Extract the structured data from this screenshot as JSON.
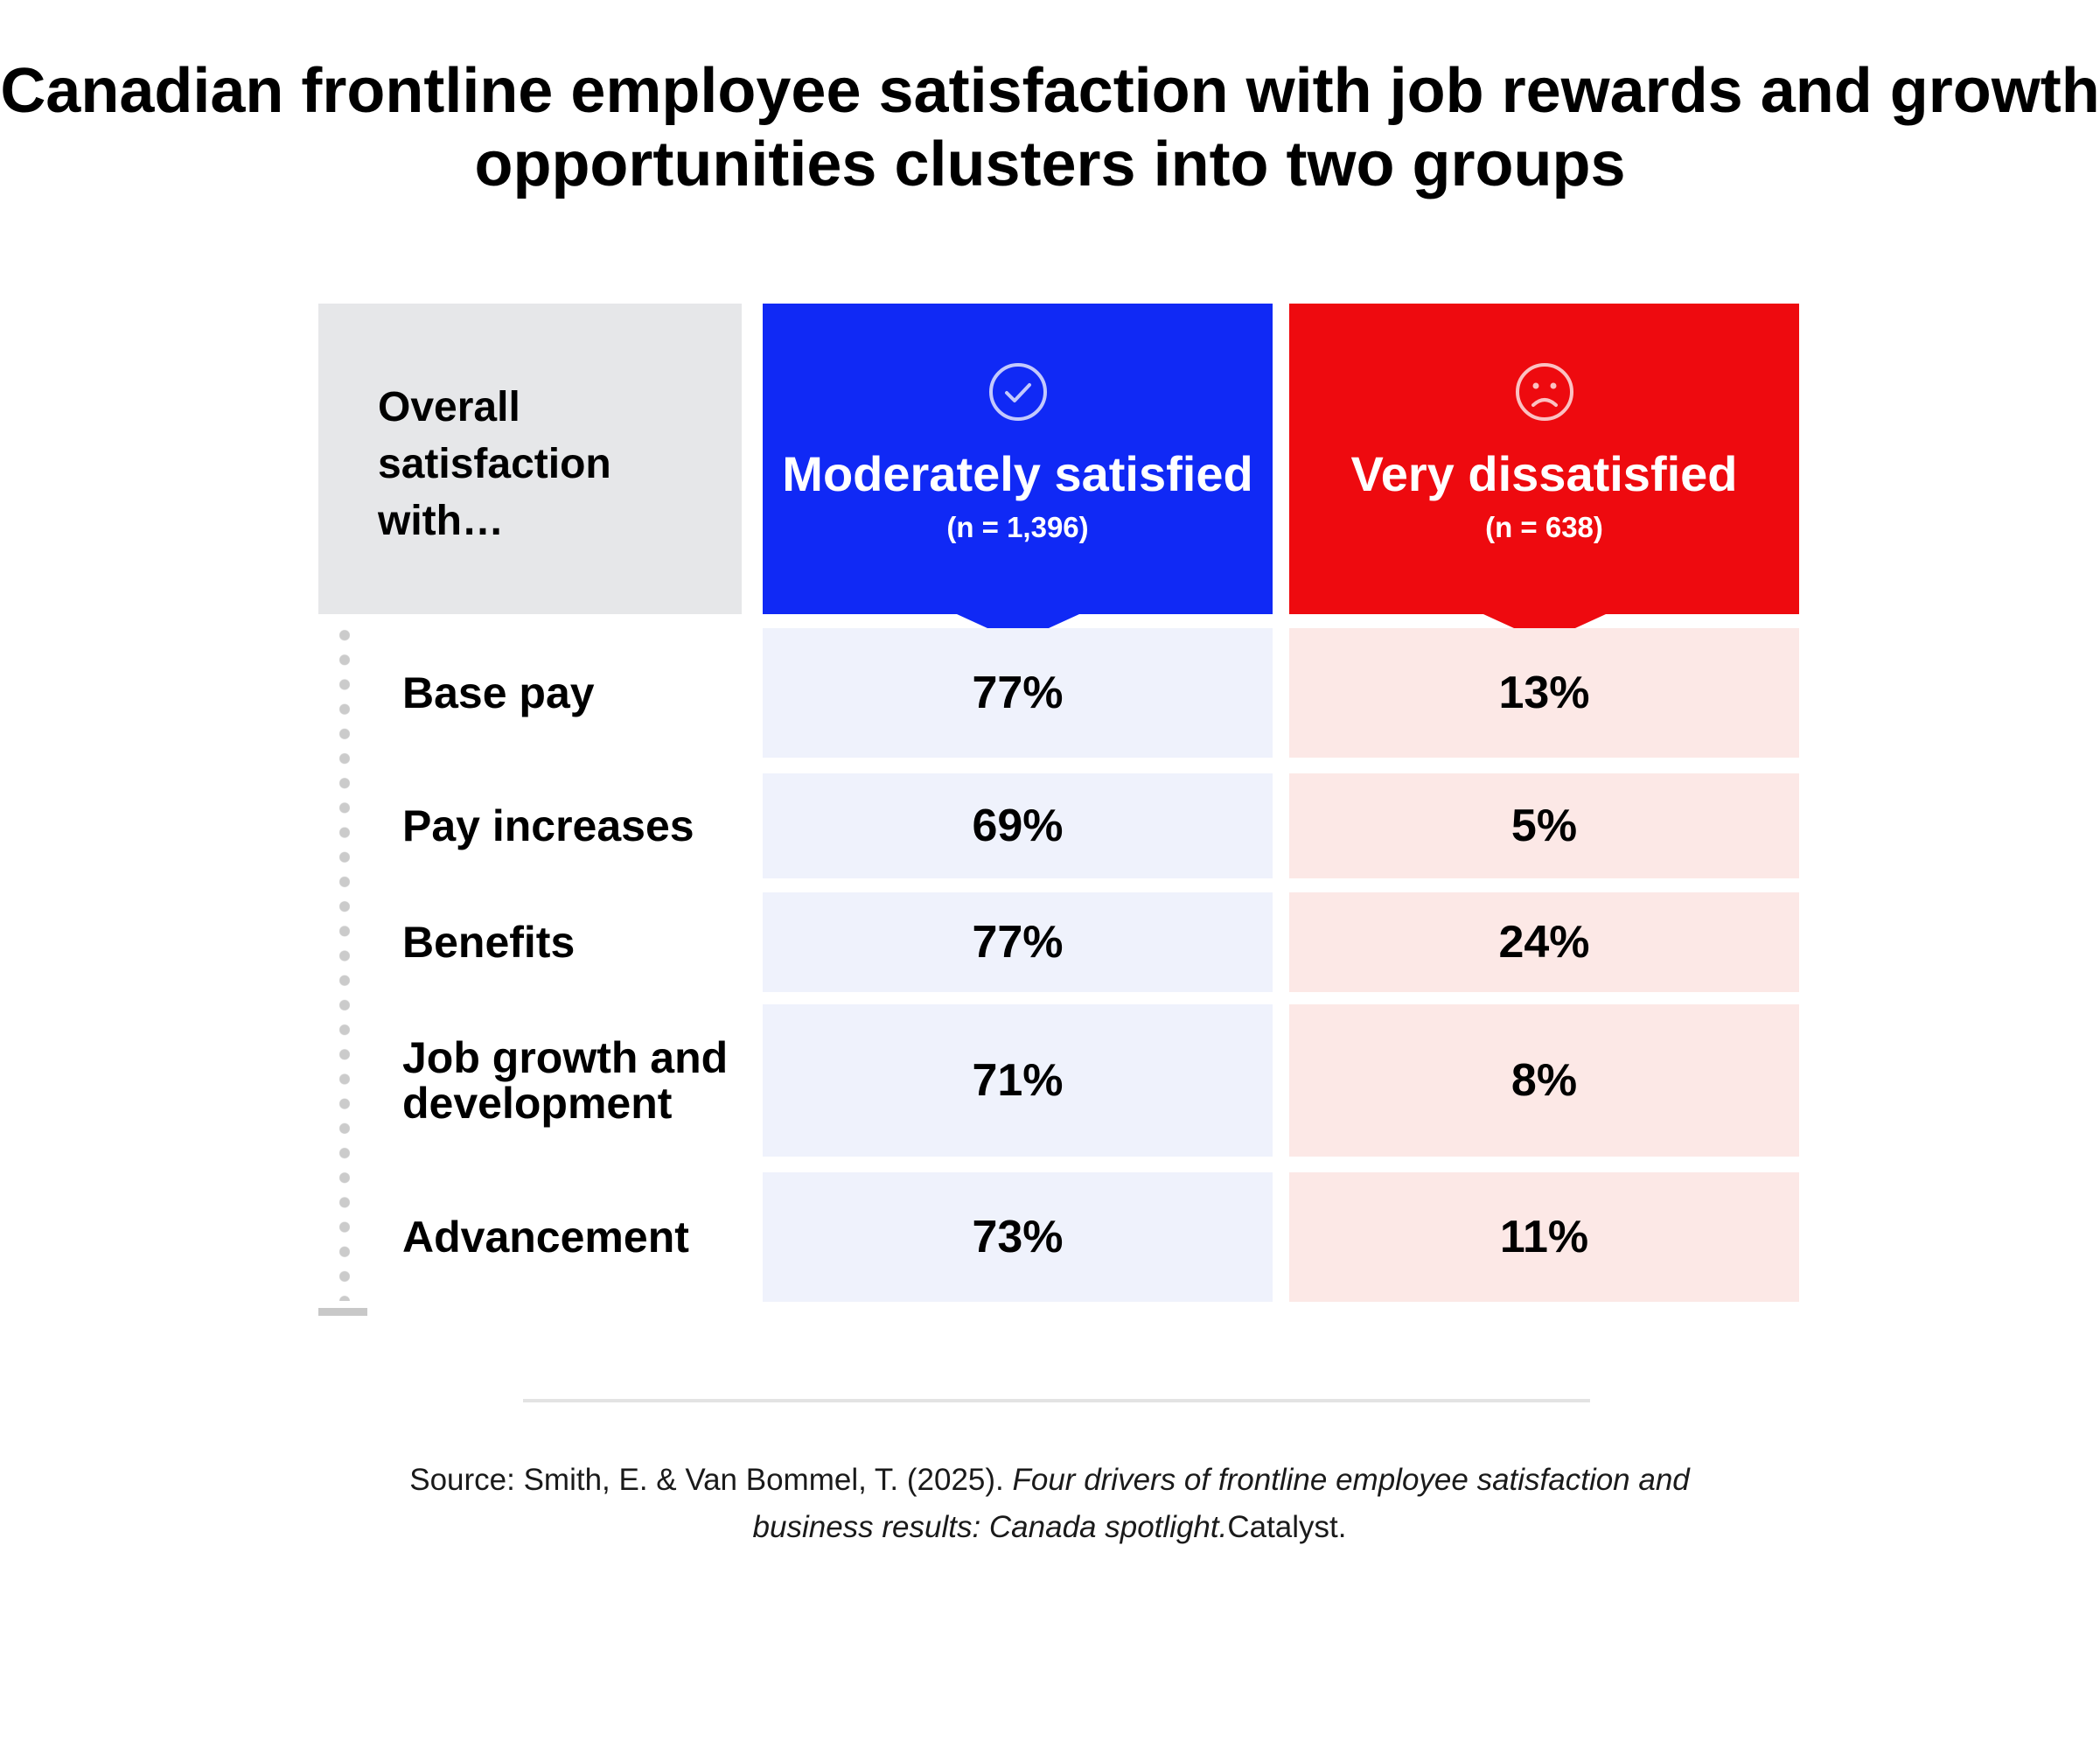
{
  "title": {
    "line1": "Canadian frontline employee satisfaction with job rewards and growth",
    "line2": "opportunities clusters into two groups"
  },
  "header_label": {
    "line1": "Overall",
    "line2": "satisfaction",
    "line3": "with…"
  },
  "columns": [
    {
      "name": "Moderately satisfied",
      "n": "(n = 1,396)",
      "icon": "check-circle-icon",
      "color": "#1029f5",
      "cell_bg": "#eff2fc"
    },
    {
      "name": "Very dissatisfied",
      "n": "(n = 638)",
      "icon": "sad-face-icon",
      "color": "#ee0a0f",
      "cell_bg": "#fce8e6"
    }
  ],
  "chart_data": {
    "type": "table",
    "title": "Canadian frontline employee satisfaction with job rewards and growth opportunities clusters into two groups",
    "row_header": "Overall satisfaction with…",
    "categories": [
      "Base pay",
      "Pay increases",
      "Benefits",
      "Job growth and development",
      "Advancement"
    ],
    "series": [
      {
        "name": "Moderately satisfied",
        "subtitle": "(n = 1,396)",
        "values": [
          "77%",
          "69%",
          "77%",
          "71%",
          "73%"
        ]
      },
      {
        "name": "Very dissatisfied",
        "subtitle": "(n = 638)",
        "values": [
          "13%",
          "5%",
          "24%",
          "8%",
          "11%"
        ]
      }
    ]
  },
  "rows": [
    {
      "label_lines": [
        "Base pay"
      ]
    },
    {
      "label_lines": [
        "Pay increases"
      ]
    },
    {
      "label_lines": [
        "Benefits"
      ]
    },
    {
      "label_lines": [
        "Job growth and",
        "development"
      ]
    },
    {
      "label_lines": [
        "Advancement"
      ]
    }
  ],
  "source": {
    "prefix": "Source: Smith, E. & Van Bommel, T. (2025). ",
    "title_line1": "Four drivers of frontline employee satisfaction and",
    "title_line2": "business results: Canada spotlight.",
    "publisher": "Catalyst."
  }
}
